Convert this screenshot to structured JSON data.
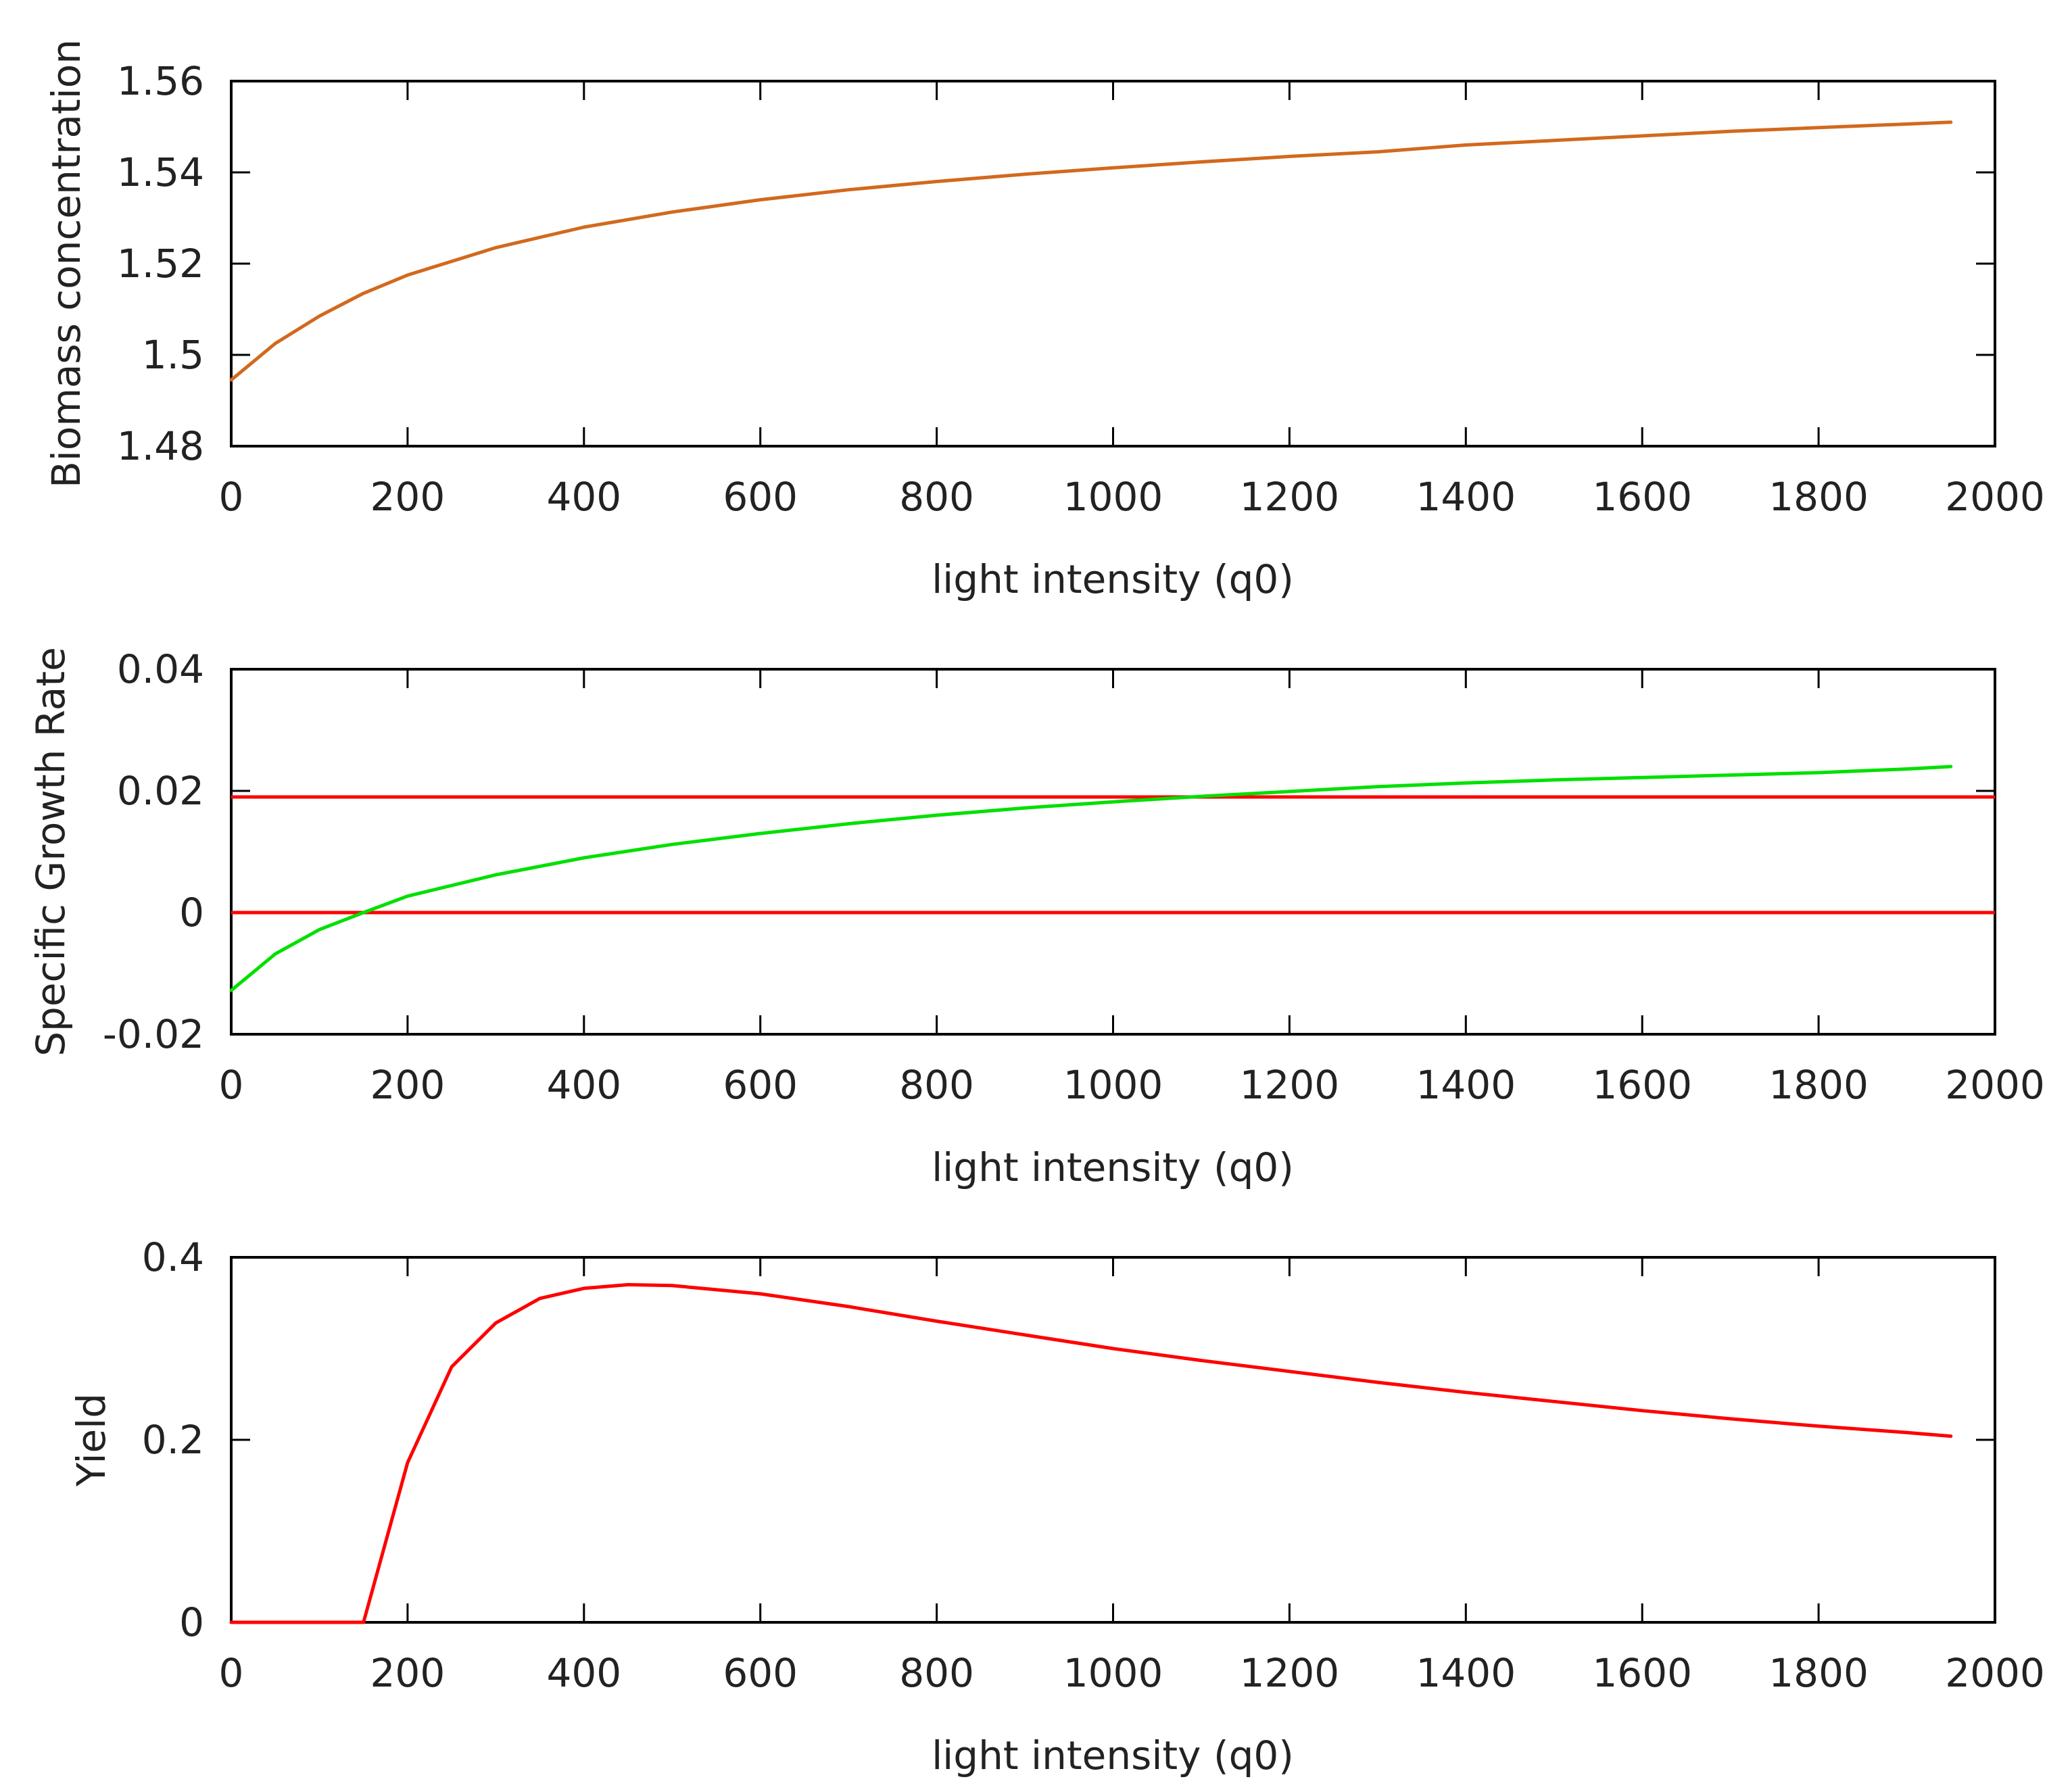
{
  "chart_data": [
    {
      "type": "line",
      "title": "",
      "xlabel": "light intensity (q0)",
      "ylabel": "Biomass concentration",
      "xlim": [
        0,
        2000
      ],
      "ylim": [
        1.48,
        1.56
      ],
      "xticks": [
        "0",
        "200",
        "400",
        "600",
        "800",
        "1000",
        "1200",
        "1400",
        "1600",
        "1800",
        "2000"
      ],
      "yticks": [
        "1.48",
        "1.5",
        "1.52",
        "1.54",
        "1.56"
      ],
      "grid": false,
      "series": [
        {
          "name": "Biomass concentration",
          "color": "#d2691e",
          "x": [
            0,
            50,
            100,
            150,
            200,
            300,
            400,
            500,
            600,
            700,
            800,
            900,
            1000,
            1100,
            1200,
            1300,
            1400,
            1500,
            1600,
            1700,
            1800,
            1900,
            1950
          ],
          "y": [
            1.4945,
            1.5025,
            1.5085,
            1.5135,
            1.5175,
            1.5235,
            1.528,
            1.5313,
            1.534,
            1.5362,
            1.538,
            1.5396,
            1.541,
            1.5423,
            1.5435,
            1.5445,
            1.546,
            1.547,
            1.548,
            1.549,
            1.5498,
            1.5506,
            1.551
          ]
        }
      ]
    },
    {
      "type": "line",
      "title": "",
      "xlabel": "light intensity (q0)",
      "ylabel": "Specific Growth Rate",
      "xlim": [
        0,
        2000
      ],
      "ylim": [
        -0.02,
        0.04
      ],
      "xticks": [
        "0",
        "200",
        "400",
        "600",
        "800",
        "1000",
        "1200",
        "1400",
        "1600",
        "1800",
        "2000"
      ],
      "yticks": [
        "-0.02",
        "0",
        "0.02",
        "0.04"
      ],
      "grid": false,
      "series": [
        {
          "name": "Specific Growth Rate",
          "color": "#00e000",
          "x": [
            0,
            50,
            100,
            150,
            200,
            300,
            400,
            500,
            600,
            700,
            800,
            900,
            1000,
            1100,
            1200,
            1300,
            1400,
            1500,
            1600,
            1700,
            1800,
            1900,
            1950
          ],
          "y": [
            -0.0128,
            -0.0068,
            -0.0028,
            0.0,
            0.0027,
            0.0062,
            0.009,
            0.0112,
            0.013,
            0.0146,
            0.016,
            0.0172,
            0.0182,
            0.0191,
            0.0199,
            0.0207,
            0.0213,
            0.0218,
            0.0222,
            0.0226,
            0.023,
            0.0236,
            0.024
          ]
        }
      ],
      "hlines": [
        {
          "y": 0.019,
          "color": "#ff0000"
        },
        {
          "y": 0.0,
          "color": "#ff0000"
        }
      ]
    },
    {
      "type": "line",
      "title": "",
      "xlabel": "light intensity (q0)",
      "ylabel": "Yield",
      "xlim": [
        0,
        2000
      ],
      "ylim": [
        0,
        0.4
      ],
      "xticks": [
        "0",
        "200",
        "400",
        "600",
        "800",
        "1000",
        "1200",
        "1400",
        "1600",
        "1800",
        "2000"
      ],
      "yticks": [
        "0",
        "0.2",
        "0.4"
      ],
      "grid": false,
      "series": [
        {
          "name": "Yield",
          "color": "#ff0000",
          "x": [
            0,
            50,
            100,
            150,
            200,
            250,
            300,
            350,
            400,
            450,
            500,
            600,
            700,
            800,
            900,
            1000,
            1100,
            1200,
            1300,
            1400,
            1500,
            1600,
            1700,
            1800,
            1900,
            1950
          ],
          "y": [
            0,
            0,
            0,
            0,
            0.175,
            0.28,
            0.328,
            0.355,
            0.366,
            0.37,
            0.369,
            0.36,
            0.346,
            0.33,
            0.315,
            0.3,
            0.287,
            0.275,
            0.263,
            0.252,
            0.242,
            0.232,
            0.223,
            0.215,
            0.208,
            0.204
          ]
        }
      ]
    }
  ]
}
